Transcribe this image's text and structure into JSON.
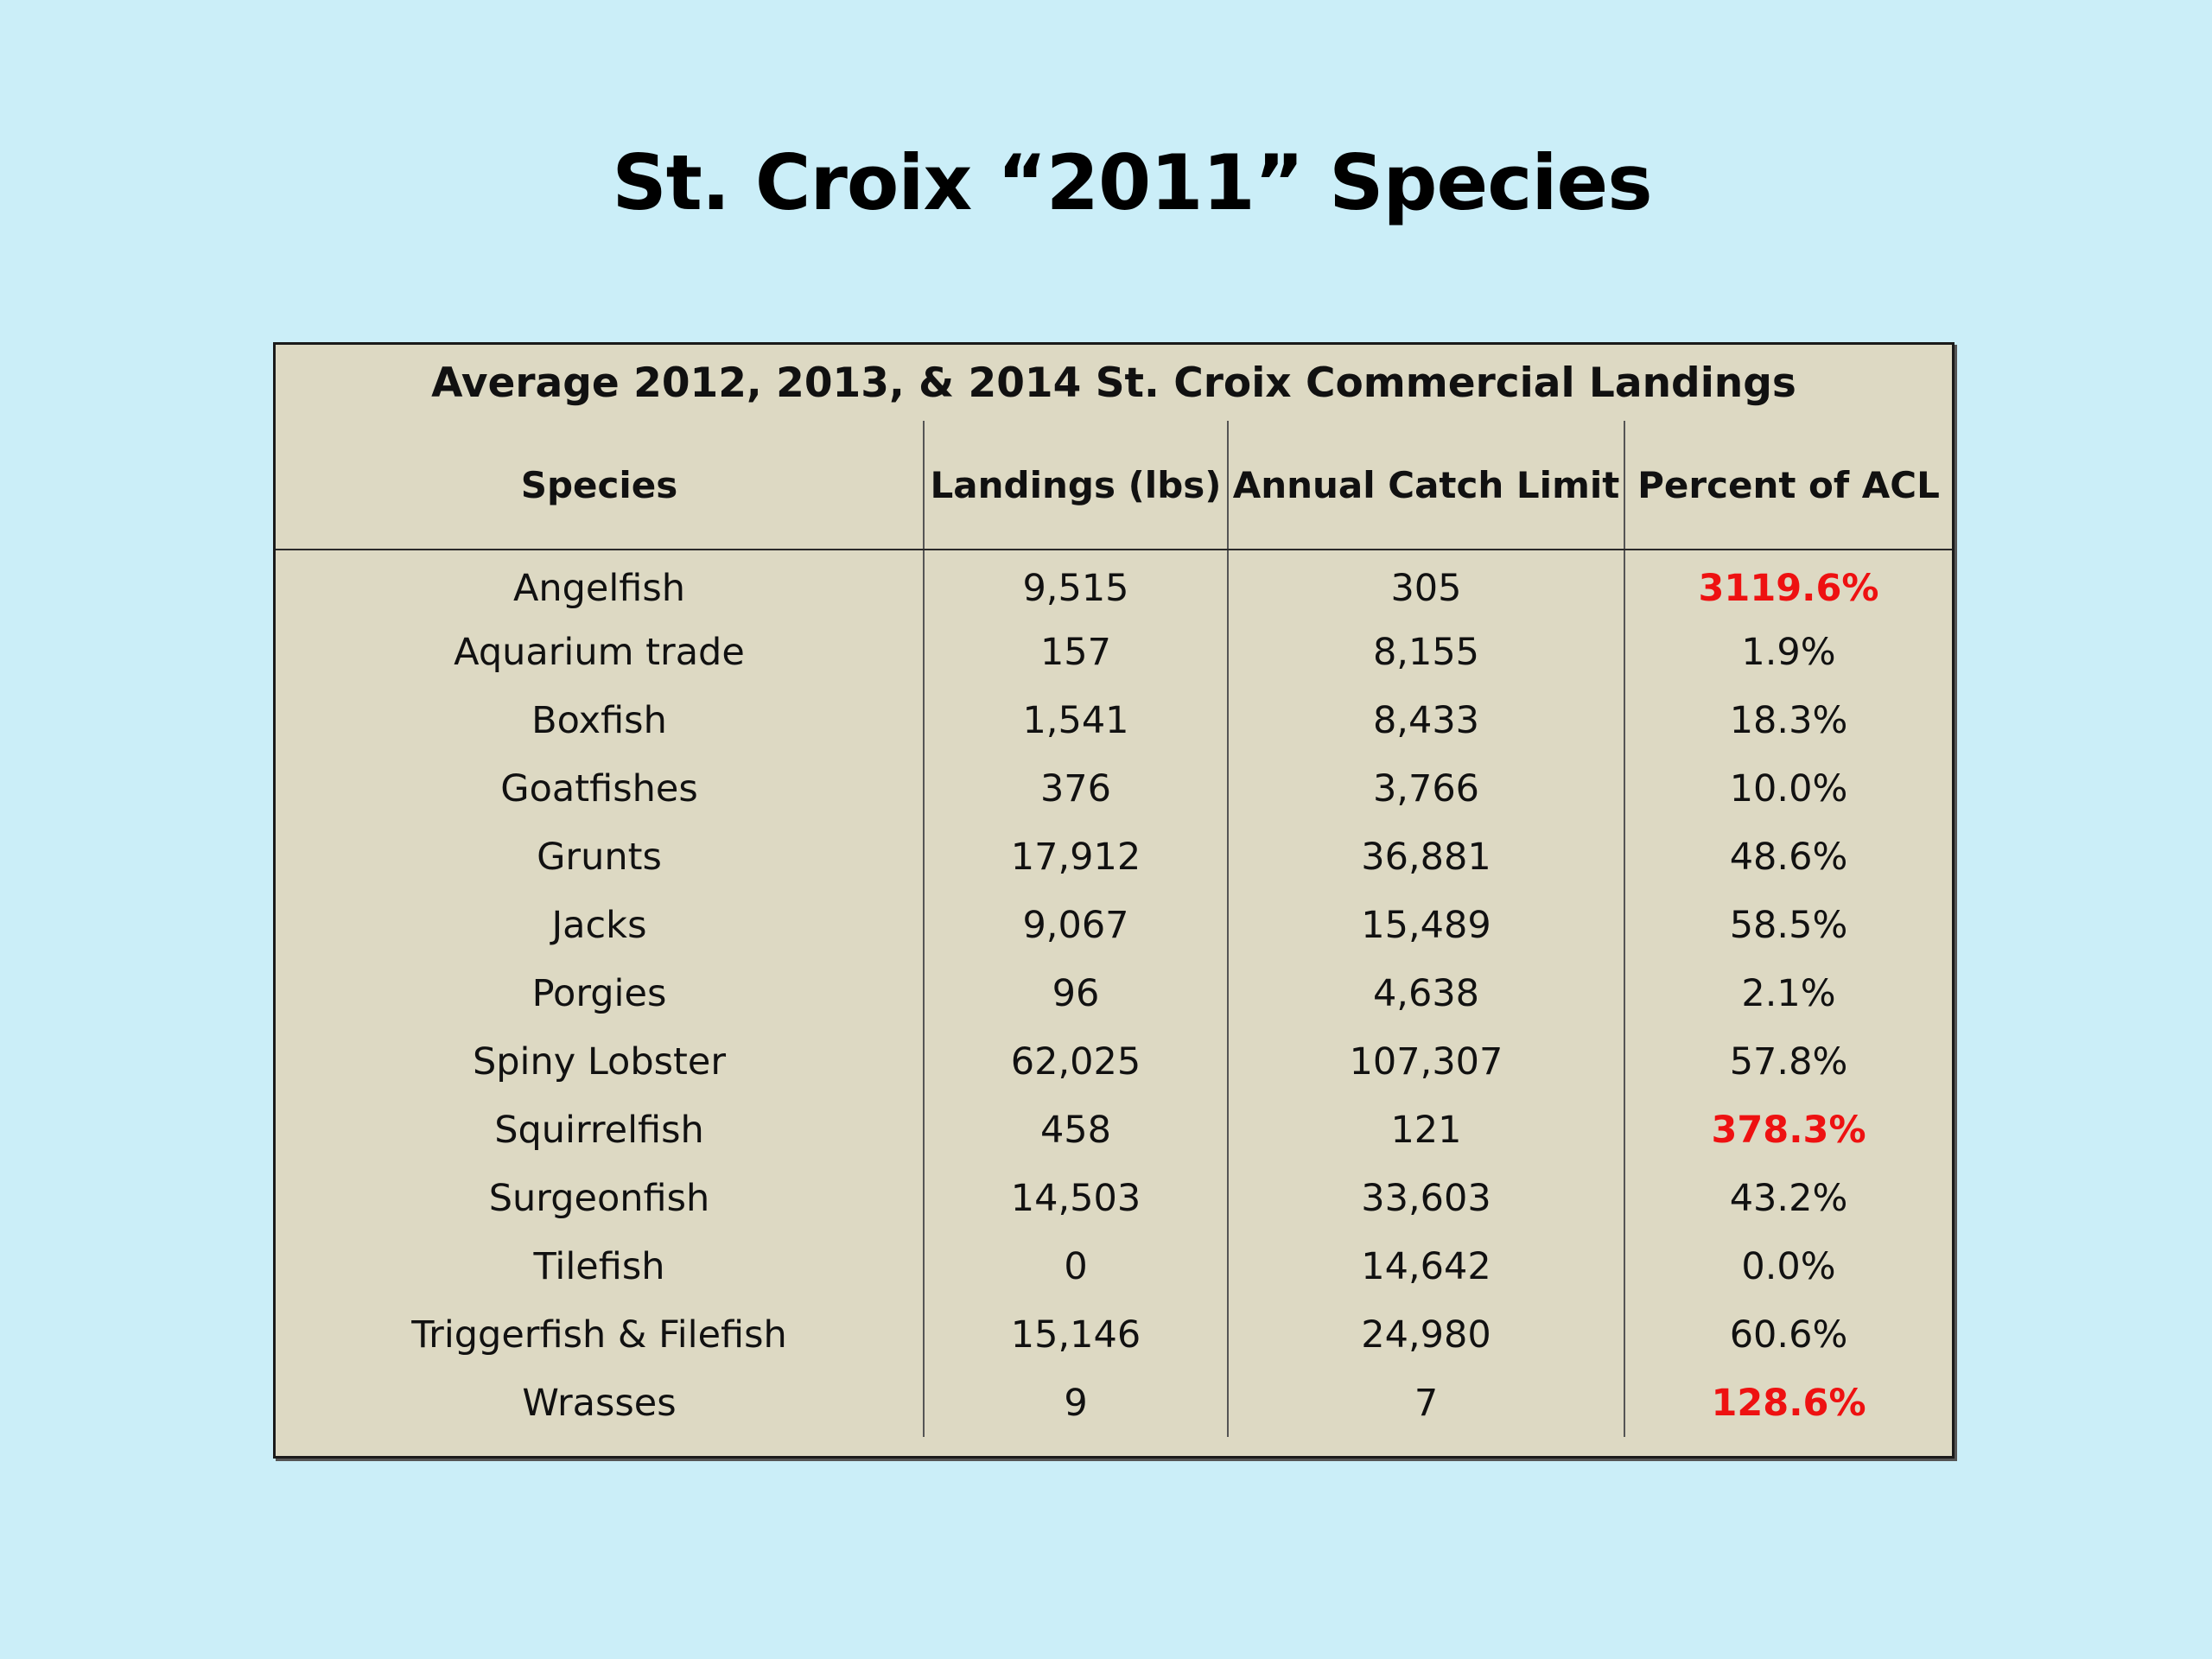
{
  "slide": {
    "title": "St. Croix “2011” Species"
  },
  "table": {
    "caption": "Average 2012, 2013, & 2014 St. Croix Commercial Landings",
    "headers": [
      "Species",
      "Landings (lbs)",
      "Annual Catch Limit",
      "Percent of ACL"
    ],
    "highlight_color": "#ee1111",
    "rows": [
      {
        "species": "Angelfish",
        "landings": "9,515",
        "acl": "305",
        "percent": "3119.6%",
        "exceeds": true
      },
      {
        "species": "Aquarium trade",
        "landings": "157",
        "acl": "8,155",
        "percent": "1.9%",
        "exceeds": false
      },
      {
        "species": "Boxfish",
        "landings": "1,541",
        "acl": "8,433",
        "percent": "18.3%",
        "exceeds": false
      },
      {
        "species": "Goatfishes",
        "landings": "376",
        "acl": "3,766",
        "percent": "10.0%",
        "exceeds": false
      },
      {
        "species": "Grunts",
        "landings": "17,912",
        "acl": "36,881",
        "percent": "48.6%",
        "exceeds": false
      },
      {
        "species": "Jacks",
        "landings": "9,067",
        "acl": "15,489",
        "percent": "58.5%",
        "exceeds": false
      },
      {
        "species": "Porgies",
        "landings": "96",
        "acl": "4,638",
        "percent": "2.1%",
        "exceeds": false
      },
      {
        "species": "Spiny Lobster",
        "landings": "62,025",
        "acl": "107,307",
        "percent": "57.8%",
        "exceeds": false
      },
      {
        "species": "Squirrelfish",
        "landings": "458",
        "acl": "121",
        "percent": "378.3%",
        "exceeds": true
      },
      {
        "species": "Surgeonfish",
        "landings": "14,503",
        "acl": "33,603",
        "percent": "43.2%",
        "exceeds": false
      },
      {
        "species": "Tilefish",
        "landings": "0",
        "acl": "14,642",
        "percent": "0.0%",
        "exceeds": false
      },
      {
        "species": "Triggerfish & Filefish",
        "landings": "15,146",
        "acl": "24,980",
        "percent": "60.6%",
        "exceeds": false
      },
      {
        "species": "Wrasses",
        "landings": "9",
        "acl": "7",
        "percent": "128.6%",
        "exceeds": true
      }
    ]
  }
}
